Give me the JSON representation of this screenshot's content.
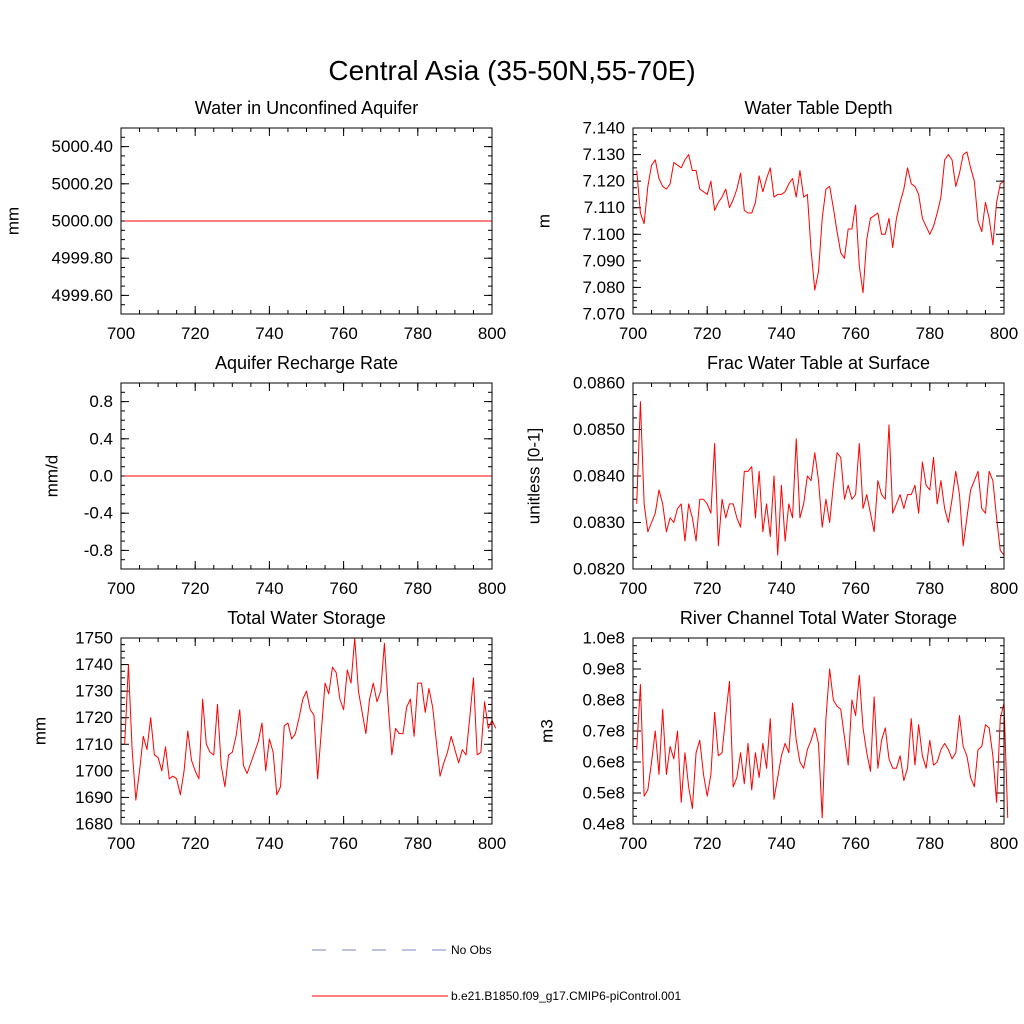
{
  "title": "Central Asia (35-50N,55-70E)",
  "chart_data": [
    {
      "type": "line",
      "title": "Water in Unconfined Aquifer",
      "ylabel": "mm",
      "xlim": [
        700,
        800
      ],
      "ylim": [
        4999.5,
        5000.5
      ],
      "xticks": [
        700,
        720,
        740,
        760,
        780,
        800
      ],
      "yticks": [
        4999.6,
        4999.8,
        5000.0,
        5000.2,
        5000.4
      ],
      "yticklabels": [
        "4999.60",
        "4999.80",
        "5000.00",
        "5000.20",
        "5000.40"
      ],
      "series": [
        {
          "name": "b.e21.B1850.f09_g17.CMIP6-piControl.001",
          "color": "#ff0000",
          "x0": 701,
          "dx": 1,
          "y": [
            5000.0,
            5000.0,
            5000.0,
            5000.0,
            5000.0,
            5000.0,
            5000.0,
            5000.0,
            5000.0,
            5000.0,
            5000.0,
            5000.0,
            5000.0,
            5000.0,
            5000.0,
            5000.0,
            5000.0,
            5000.0,
            5000.0,
            5000.0,
            5000.0,
            5000.0,
            5000.0,
            5000.0,
            5000.0,
            5000.0,
            5000.0,
            5000.0,
            5000.0,
            5000.0,
            5000.0,
            5000.0,
            5000.0,
            5000.0,
            5000.0,
            5000.0,
            5000.0,
            5000.0,
            5000.0,
            5000.0,
            5000.0,
            5000.0,
            5000.0,
            5000.0,
            5000.0,
            5000.0,
            5000.0,
            5000.0,
            5000.0,
            5000.0,
            5000.0,
            5000.0,
            5000.0,
            5000.0,
            5000.0,
            5000.0,
            5000.0,
            5000.0,
            5000.0,
            5000.0,
            5000.0,
            5000.0,
            5000.0,
            5000.0,
            5000.0,
            5000.0,
            5000.0,
            5000.0,
            5000.0,
            5000.0,
            5000.0,
            5000.0,
            5000.0,
            5000.0,
            5000.0,
            5000.0,
            5000.0,
            5000.0,
            5000.0,
            5000.0,
            5000.0,
            5000.0,
            5000.0,
            5000.0,
            5000.0,
            5000.0,
            5000.0,
            5000.0,
            5000.0,
            5000.0,
            5000.0,
            5000.0,
            5000.0,
            5000.0,
            5000.0,
            5000.0,
            5000.0,
            5000.0,
            5000.0,
            5000.0
          ]
        }
      ]
    },
    {
      "type": "line",
      "title": "Water Table Depth",
      "ylabel": "m",
      "xlim": [
        700,
        800
      ],
      "ylim": [
        7.07,
        7.14
      ],
      "xticks": [
        700,
        720,
        740,
        760,
        780,
        800
      ],
      "yticks": [
        7.07,
        7.08,
        7.09,
        7.1,
        7.11,
        7.12,
        7.13,
        7.14
      ],
      "yticklabels": [
        "7.070",
        "7.080",
        "7.090",
        "7.100",
        "7.110",
        "7.120",
        "7.130",
        "7.140"
      ],
      "series": [
        {
          "name": "b.e21.B1850.f09_g17.CMIP6-piControl.001",
          "color": "#ff0000",
          "x0": 701,
          "dx": 1,
          "y": [
            7.124,
            7.108,
            7.104,
            7.118,
            7.126,
            7.128,
            7.121,
            7.118,
            7.117,
            7.119,
            7.127,
            7.126,
            7.125,
            7.128,
            7.13,
            7.124,
            7.124,
            7.117,
            7.116,
            7.115,
            7.12,
            7.109,
            7.112,
            7.114,
            7.117,
            7.11,
            7.113,
            7.117,
            7.123,
            7.109,
            7.108,
            7.108,
            7.112,
            7.122,
            7.116,
            7.121,
            7.125,
            7.114,
            7.115,
            7.115,
            7.116,
            7.119,
            7.121,
            7.114,
            7.124,
            7.114,
            7.115,
            7.094,
            7.079,
            7.086,
            7.106,
            7.117,
            7.118,
            7.11,
            7.101,
            7.093,
            7.091,
            7.102,
            7.102,
            7.111,
            7.088,
            7.078,
            7.098,
            7.106,
            7.107,
            7.108,
            7.1,
            7.1,
            7.106,
            7.095,
            7.106,
            7.112,
            7.117,
            7.125,
            7.119,
            7.118,
            7.115,
            7.106,
            7.103,
            7.1,
            7.103,
            7.108,
            7.114,
            7.128,
            7.13,
            7.128,
            7.118,
            7.123,
            7.13,
            7.131,
            7.125,
            7.12,
            7.105,
            7.101,
            7.112,
            7.106,
            7.096,
            7.112,
            7.119,
            7.12
          ]
        }
      ]
    },
    {
      "type": "line",
      "title": "Aquifer Recharge Rate",
      "ylabel": "mm/d",
      "xlim": [
        700,
        800
      ],
      "ylim": [
        -1.0,
        1.0
      ],
      "xticks": [
        700,
        720,
        740,
        760,
        780,
        800
      ],
      "yticks": [
        -0.8,
        -0.4,
        0.0,
        0.4,
        0.8
      ],
      "yticklabels": [
        "-0.8",
        "-0.4",
        "0.0",
        "0.4",
        "0.8"
      ],
      "series": [
        {
          "name": "b.e21.B1850.f09_g17.CMIP6-piControl.001",
          "color": "#ff0000",
          "x0": 701,
          "dx": 1,
          "y": [
            0,
            0,
            0,
            0,
            0,
            0,
            0,
            0,
            0,
            0,
            0,
            0,
            0,
            0,
            0,
            0,
            0,
            0,
            0,
            0,
            0,
            0,
            0,
            0,
            0,
            0,
            0,
            0,
            0,
            0,
            0,
            0,
            0,
            0,
            0,
            0,
            0,
            0,
            0,
            0,
            0,
            0,
            0,
            0,
            0,
            0,
            0,
            0,
            0,
            0,
            0,
            0,
            0,
            0,
            0,
            0,
            0,
            0,
            0,
            0,
            0,
            0,
            0,
            0,
            0,
            0,
            0,
            0,
            0,
            0,
            0,
            0,
            0,
            0,
            0,
            0,
            0,
            0,
            0,
            0,
            0,
            0,
            0,
            0,
            0,
            0,
            0,
            0,
            0,
            0,
            0,
            0,
            0,
            0,
            0,
            0,
            0,
            0,
            0,
            0
          ]
        }
      ]
    },
    {
      "type": "line",
      "title": "Frac Water Table at Surface",
      "ylabel": "unitless [0-1]",
      "xlim": [
        700,
        800
      ],
      "ylim": [
        0.082,
        0.086
      ],
      "xticks": [
        700,
        720,
        740,
        760,
        780,
        800
      ],
      "yticks": [
        0.082,
        0.083,
        0.084,
        0.085,
        0.086
      ],
      "yticklabels": [
        "0.0820",
        "0.0830",
        "0.0840",
        "0.0850",
        "0.0860"
      ],
      "series": [
        {
          "name": "b.e21.B1850.f09_g17.CMIP6-piControl.001",
          "color": "#ff0000",
          "x0": 701,
          "dx": 1,
          "y": [
            0.0834,
            0.0856,
            0.0834,
            0.0828,
            0.083,
            0.0832,
            0.0837,
            0.0834,
            0.0828,
            0.0831,
            0.083,
            0.0833,
            0.0834,
            0.0826,
            0.0834,
            0.0831,
            0.0826,
            0.0835,
            0.0835,
            0.0834,
            0.0832,
            0.0847,
            0.0825,
            0.0835,
            0.0831,
            0.0834,
            0.0834,
            0.0831,
            0.0829,
            0.0841,
            0.0841,
            0.0842,
            0.0831,
            0.0841,
            0.0828,
            0.0834,
            0.0827,
            0.084,
            0.0823,
            0.0838,
            0.0826,
            0.0834,
            0.0831,
            0.0848,
            0.0831,
            0.0834,
            0.084,
            0.0839,
            0.0845,
            0.0839,
            0.0829,
            0.0835,
            0.083,
            0.0838,
            0.0845,
            0.0844,
            0.0835,
            0.0838,
            0.0835,
            0.0836,
            0.0847,
            0.0833,
            0.0836,
            0.0832,
            0.0828,
            0.0839,
            0.0836,
            0.0835,
            0.0851,
            0.0832,
            0.0834,
            0.0836,
            0.0833,
            0.0836,
            0.0836,
            0.0838,
            0.0832,
            0.0843,
            0.0838,
            0.0837,
            0.0844,
            0.0834,
            0.0839,
            0.0833,
            0.083,
            0.0835,
            0.0841,
            0.0836,
            0.0825,
            0.0831,
            0.0837,
            0.0839,
            0.0841,
            0.0833,
            0.0832,
            0.0841,
            0.0839,
            0.0831,
            0.0824,
            0.0823
          ]
        }
      ]
    },
    {
      "type": "line",
      "title": "Total Water Storage",
      "ylabel": "mm",
      "xlim": [
        700,
        800
      ],
      "ylim": [
        1680,
        1750
      ],
      "xticks": [
        700,
        720,
        740,
        760,
        780,
        800
      ],
      "yticks": [
        1680,
        1690,
        1700,
        1710,
        1720,
        1730,
        1740,
        1750
      ],
      "yticklabels": [
        "1680",
        "1690",
        "1700",
        "1710",
        "1720",
        "1730",
        "1740",
        "1750"
      ],
      "series": [
        {
          "name": "b.e21.B1850.f09_g17.CMIP6-piControl.001",
          "color": "#ff0000",
          "x0": 701,
          "dx": 1,
          "y": [
            1710,
            1740,
            1708,
            1689,
            1700,
            1713,
            1708,
            1720,
            1706,
            1705,
            1700,
            1709,
            1697,
            1698,
            1697,
            1691,
            1700,
            1715,
            1704,
            1700,
            1697,
            1727,
            1710,
            1707,
            1706,
            1725,
            1702,
            1694,
            1706,
            1707,
            1713,
            1723,
            1702,
            1699,
            1703,
            1707,
            1711,
            1718,
            1700,
            1712,
            1707,
            1691,
            1694,
            1717,
            1718,
            1712,
            1714,
            1720,
            1727,
            1730,
            1723,
            1721,
            1697,
            1715,
            1733,
            1729,
            1739,
            1737,
            1727,
            1723,
            1738,
            1733,
            1750,
            1730,
            1722,
            1714,
            1727,
            1733,
            1726,
            1730,
            1748,
            1725,
            1706,
            1716,
            1714,
            1714,
            1724,
            1727,
            1713,
            1733,
            1733,
            1722,
            1731,
            1724,
            1711,
            1698,
            1703,
            1707,
            1713,
            1708,
            1703,
            1708,
            1706,
            1720,
            1735,
            1706,
            1707,
            1726,
            1716,
            1719,
            1716
          ]
        }
      ]
    },
    {
      "type": "line",
      "title": "River Channel Total Water Storage",
      "ylabel": "m3",
      "xlim": [
        700,
        800
      ],
      "ylim": [
        40000000,
        100000000
      ],
      "xticks": [
        700,
        720,
        740,
        760,
        780,
        800
      ],
      "yticks": [
        40000000,
        50000000,
        60000000,
        70000000,
        80000000,
        90000000,
        100000000
      ],
      "yticklabels": [
        "0.4e8",
        "0.5e8",
        "0.6e8",
        "0.7e8",
        "0.8e8",
        "0.9e8",
        "1.0e8"
      ],
      "series": [
        {
          "name": "b.e21.B1850.f09_g17.CMIP6-piControl.001",
          "color": "#ff0000",
          "x0": 701,
          "dx": 1,
          "y": [
            64000000,
            85000000,
            49000000,
            51000000,
            60000000,
            70000000,
            56000000,
            77000000,
            56000000,
            65000000,
            61000000,
            70000000,
            47000000,
            63000000,
            52000000,
            45000000,
            63000000,
            67000000,
            56000000,
            49000000,
            56000000,
            76000000,
            62000000,
            63000000,
            75000000,
            86000000,
            52000000,
            55000000,
            63000000,
            53000000,
            66000000,
            51000000,
            63000000,
            55000000,
            66000000,
            58000000,
            74000000,
            48000000,
            55000000,
            62000000,
            66000000,
            63000000,
            79000000,
            67000000,
            60000000,
            58000000,
            64000000,
            67000000,
            71000000,
            66000000,
            42000000,
            74000000,
            90000000,
            80000000,
            78000000,
            77000000,
            68000000,
            59000000,
            80000000,
            75000000,
            88000000,
            71000000,
            63000000,
            57000000,
            81000000,
            58000000,
            67000000,
            71000000,
            61000000,
            58000000,
            58000000,
            62000000,
            54000000,
            58000000,
            74000000,
            59000000,
            72000000,
            62000000,
            58000000,
            67000000,
            59000000,
            60000000,
            64000000,
            66000000,
            64000000,
            61000000,
            63000000,
            75000000,
            65000000,
            62000000,
            55000000,
            52000000,
            64000000,
            65000000,
            72000000,
            71000000,
            62000000,
            47000000,
            74000000,
            79000000,
            42000000
          ]
        }
      ]
    }
  ],
  "legend": [
    {
      "label": "No Obs",
      "color": "#7b86c2",
      "style": "dashed"
    },
    {
      "label": "b.e21.B1850.f09_g17.CMIP6-piControl.001",
      "color": "#ff0000",
      "style": "solid"
    }
  ]
}
